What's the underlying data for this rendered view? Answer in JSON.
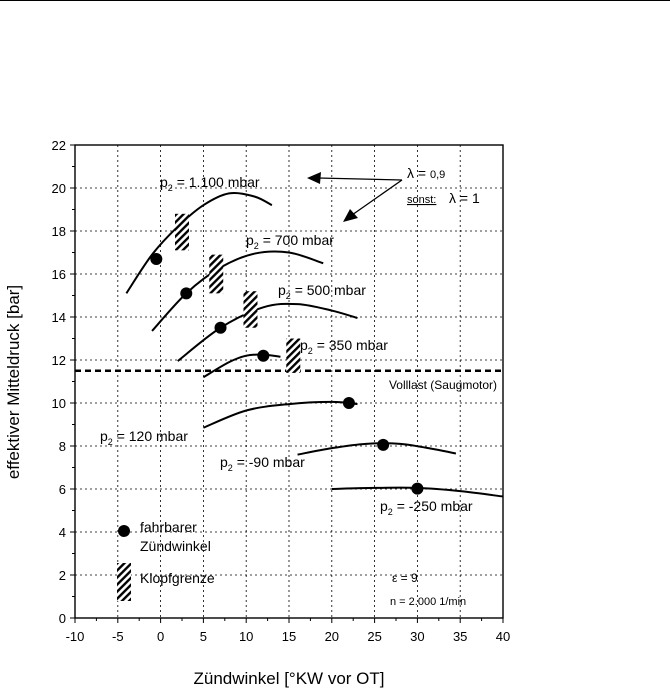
{
  "chart_data": {
    "type": "line",
    "xlabel": "Zündwinkel [°KW vor OT]",
    "ylabel": "effektiver Mitteldruck [bar]",
    "xlim": [
      -10,
      40
    ],
    "ylim": [
      0,
      22
    ],
    "x_ticks": [
      "-10",
      "-5",
      "0",
      "5",
      "10",
      "15",
      "20",
      "25",
      "30",
      "35",
      "40"
    ],
    "y_ticks": [
      "0",
      "2",
      "4",
      "6",
      "8",
      "10",
      "12",
      "14",
      "16",
      "18",
      "20",
      "22"
    ],
    "grid": true,
    "series": [
      {
        "name": "p₂ = 1.100 mbar",
        "label_main": "p",
        "label_sub": "2",
        "label_rest": " = 1.100 mbar",
        "x": [
          -4,
          -1,
          2,
          5,
          8,
          11,
          13
        ],
        "y": [
          15.1,
          16.9,
          18.2,
          19.2,
          19.75,
          19.6,
          19.2
        ],
        "operating_point": [
          -0.5,
          16.7
        ],
        "knock_limit": {
          "x": 2.5,
          "y_from": 17.1,
          "y_to": 18.8
        }
      },
      {
        "name": "p₂ = 700 mbar",
        "label_main": "p",
        "label_sub": "2",
        "label_rest": " = 700 mbar",
        "x": [
          -1,
          3,
          7,
          11,
          15,
          19
        ],
        "y": [
          13.35,
          15.1,
          16.3,
          16.95,
          17.0,
          16.5
        ],
        "operating_point": [
          3,
          15.1
        ],
        "knock_limit": {
          "x": 6.5,
          "y_from": 15.1,
          "y_to": 16.9
        }
      },
      {
        "name": "p₂ = 500 mbar",
        "label_main": "p",
        "label_sub": "2",
        "label_rest": " = 500 mbar",
        "x": [
          2,
          7,
          12,
          16,
          20,
          23
        ],
        "y": [
          11.95,
          13.5,
          14.45,
          14.6,
          14.3,
          13.95
        ],
        "operating_point": [
          7,
          13.5
        ],
        "knock_limit": {
          "x": 10.5,
          "y_from": 13.5,
          "y_to": 15.2
        }
      },
      {
        "name": "p₂ = 350 mbar",
        "label_main": "p",
        "label_sub": "2",
        "label_rest": " = 350 mbar",
        "x": [
          5,
          8,
          10,
          12,
          14
        ],
        "y": [
          11.2,
          11.9,
          12.2,
          12.25,
          12.15
        ],
        "operating_point": [
          12,
          12.2
        ],
        "knock_limit": {
          "x": 15.5,
          "y_from": 11.4,
          "y_to": 13.0
        }
      },
      {
        "name": "p₂ = 120 mbar",
        "label_main": "p",
        "label_sub": "2",
        "label_rest": " = 120 mbar",
        "x": [
          5,
          10,
          15,
          20,
          23
        ],
        "y": [
          8.85,
          9.65,
          9.95,
          10.05,
          9.95
        ],
        "operating_point": [
          22,
          10.0
        ]
      },
      {
        "name": "p₂ = -90 mbar",
        "label_main": "p",
        "label_sub": "2",
        "label_rest": " = -90 mbar",
        "x": [
          16,
          20,
          24,
          28,
          32,
          34.5
        ],
        "y": [
          7.6,
          7.9,
          8.1,
          8.1,
          7.85,
          7.65
        ],
        "operating_point": [
          26,
          8.05
        ]
      },
      {
        "name": "p₂ = -250 mbar",
        "label_main": "p",
        "label_sub": "2",
        "label_rest": " = -250 mbar",
        "x": [
          20,
          25,
          30,
          35,
          40
        ],
        "y": [
          6.0,
          6.05,
          6.05,
          5.9,
          5.65
        ],
        "operating_point": [
          30,
          6.02
        ]
      }
    ],
    "full_load_line": {
      "y": 11.5,
      "label": "Volllast (Saugmotor)"
    },
    "lambda_annotation": {
      "lambda_symbol": "λ",
      "lambda_value_main": "λ = ",
      "lambda_value": "0,9",
      "sonst_label": "sonst:",
      "sonst_value": "λ = 1"
    },
    "legend": {
      "operating_point_label_1": "fahrbarer",
      "operating_point_label_2": "Zündwinkel",
      "knock_label": "Klopfgrenze",
      "position": "bottom-left"
    },
    "notes": {
      "epsilon": "ε = 9",
      "speed": "n = 2.000 1/min"
    }
  }
}
